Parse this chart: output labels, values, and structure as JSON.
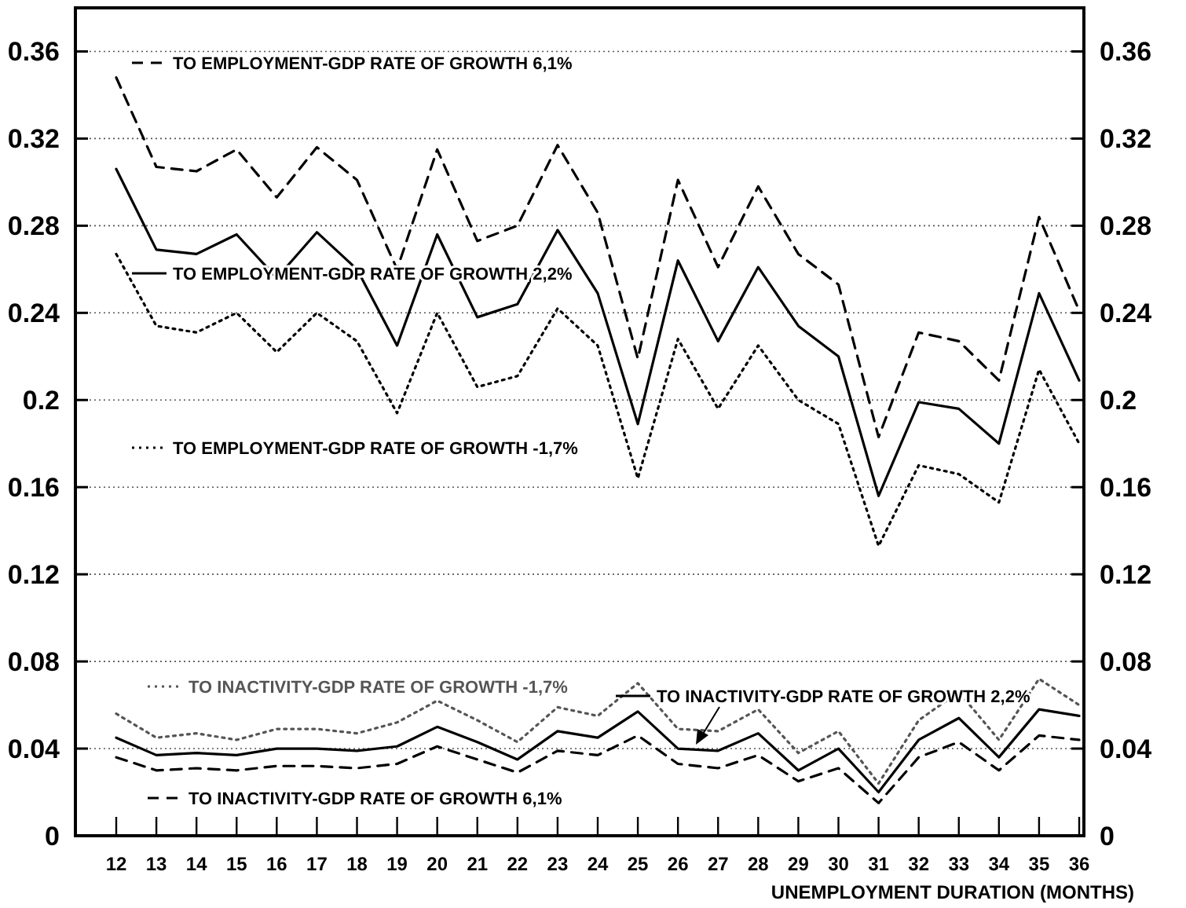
{
  "chart_data": {
    "type": "line",
    "xlabel": "UNEMPLOYMENT DURATION (MONTHS)",
    "categories": [
      "12",
      "13",
      "14",
      "15",
      "16",
      "17",
      "18",
      "19",
      "20",
      "21",
      "22",
      "23",
      "24",
      "25",
      "26",
      "27",
      "28",
      "29",
      "30",
      "31",
      "32",
      "33",
      "34",
      "35",
      "36"
    ],
    "series": [
      {
        "name": "TO EMPLOYMENT-GDP RATE OF GROWTH 6,1%",
        "color": "#000000",
        "line_style": "dashed",
        "values": [
          0.348,
          0.307,
          0.305,
          0.315,
          0.293,
          0.316,
          0.301,
          0.26,
          0.315,
          0.273,
          0.28,
          0.317,
          0.286,
          0.219,
          0.301,
          0.261,
          0.298,
          0.267,
          0.253,
          0.183,
          0.231,
          0.227,
          0.209,
          0.284,
          0.241
        ]
      },
      {
        "name": "TO EMPLOYMENT-GDP RATE OF GROWTH 2,2%",
        "color": "#000000",
        "line_style": "solid",
        "values": [
          0.306,
          0.269,
          0.267,
          0.276,
          0.256,
          0.277,
          0.26,
          0.225,
          0.276,
          0.238,
          0.244,
          0.278,
          0.249,
          0.189,
          0.264,
          0.227,
          0.261,
          0.234,
          0.22,
          0.156,
          0.199,
          0.196,
          0.18,
          0.249,
          0.209
        ]
      },
      {
        "name": "TO EMPLOYMENT-GDP RATE OF GROWTH -1,7%",
        "color": "#000000",
        "line_style": "dotted",
        "values": [
          0.267,
          0.234,
          0.231,
          0.24,
          0.222,
          0.24,
          0.227,
          0.194,
          0.24,
          0.206,
          0.211,
          0.242,
          0.225,
          0.164,
          0.228,
          0.196,
          0.225,
          0.2,
          0.189,
          0.133,
          0.17,
          0.166,
          0.153,
          0.214,
          0.18
        ]
      },
      {
        "name": "TO INACTIVITY-GDP RATE OF GROWTH -1,7%",
        "color": "#555555",
        "line_style": "dotted",
        "values": [
          0.056,
          0.045,
          0.047,
          0.044,
          0.049,
          0.049,
          0.047,
          0.052,
          0.062,
          0.053,
          0.043,
          0.059,
          0.055,
          0.07,
          0.049,
          0.048,
          0.058,
          0.038,
          0.048,
          0.024,
          0.053,
          0.066,
          0.044,
          0.072,
          0.06
        ]
      },
      {
        "name": "TO INACTIVITY-GDP RATE OF GROWTH 2,2%",
        "color": "#000000",
        "line_style": "solid",
        "values": [
          0.045,
          0.037,
          0.038,
          0.037,
          0.04,
          0.04,
          0.039,
          0.041,
          0.05,
          0.043,
          0.035,
          0.048,
          0.045,
          0.057,
          0.04,
          0.039,
          0.047,
          0.03,
          0.04,
          0.02,
          0.044,
          0.054,
          0.036,
          0.058,
          0.055
        ]
      },
      {
        "name": "TO INACTIVITY-GDP RATE OF GROWTH 6,1%",
        "color": "#000000",
        "line_style": "dashed",
        "values": [
          0.036,
          0.03,
          0.031,
          0.03,
          0.032,
          0.032,
          0.031,
          0.033,
          0.041,
          0.035,
          0.029,
          0.039,
          0.037,
          0.046,
          0.033,
          0.031,
          0.037,
          0.025,
          0.031,
          0.015,
          0.036,
          0.043,
          0.03,
          0.046,
          0.044
        ]
      }
    ],
    "ylim": [
      0,
      0.38
    ],
    "yticks": [
      0,
      0.04,
      0.08,
      0.12,
      0.16,
      0.2,
      0.24,
      0.28,
      0.32,
      0.36
    ],
    "y2lim": [
      0,
      0.38
    ],
    "y2ticks": [
      0,
      0.04,
      0.08,
      0.12,
      0.16,
      0.2,
      0.24,
      0.28,
      0.32,
      0.36
    ],
    "grid": "y",
    "legend": "bottom right"
  }
}
